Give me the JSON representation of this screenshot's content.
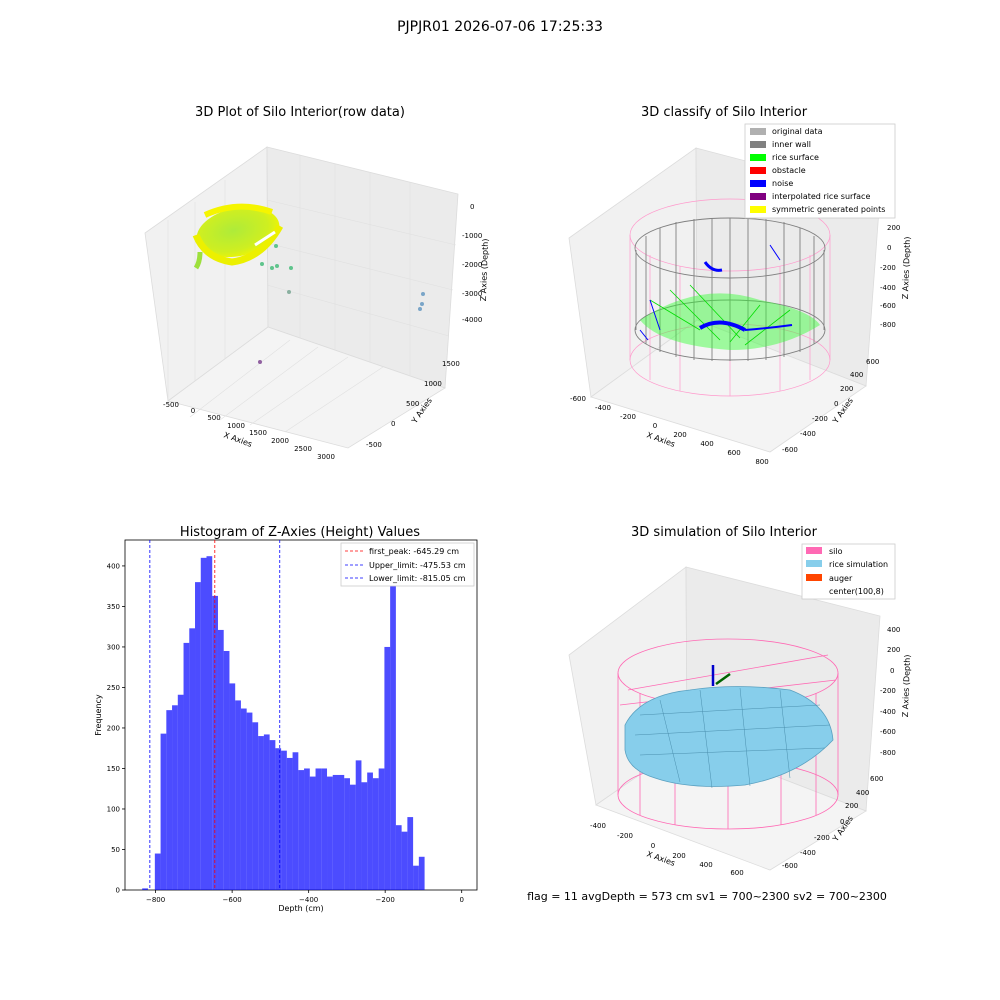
{
  "figure": {
    "suptitle": "PJPJR01 2026-07-06 17:25:33",
    "footer_text": "flag = 11   avgDepth = 573 cm  sv1 = 700~2300  sv2 = 700~2300"
  },
  "chart_data": [
    {
      "type": "scatter",
      "title": "3D Plot of Silo Interior(row data)",
      "xlabel": "X Axies",
      "ylabel": "Y Axies",
      "zlabel": "Z Axies (Depth)",
      "x_ticks": [
        "-500",
        "0",
        "500",
        "1000",
        "1500",
        "2000",
        "2500",
        "3000"
      ],
      "y_ticks": [
        "-500",
        "0",
        "500",
        "1000",
        "1500"
      ],
      "z_ticks": [
        "0",
        "-1000",
        "-2000",
        "-3000",
        "-4000"
      ],
      "outlier_points": [
        {
          "x": 500,
          "y": 700,
          "z": -1900
        },
        {
          "x": 600,
          "y": 700,
          "z": -2100
        },
        {
          "x": 700,
          "y": 750,
          "z": -2150
        },
        {
          "x": 400,
          "y": 900,
          "z": -2000
        },
        {
          "x": 800,
          "y": 600,
          "z": -2900
        },
        {
          "x": 2800,
          "y": 1400,
          "z": -3200
        },
        {
          "x": 2800,
          "y": 1300,
          "z": -3700
        },
        {
          "x": 600,
          "y": -400,
          "z": -4500
        }
      ]
    },
    {
      "type": "scatter",
      "title": "3D classify of Silo Interior",
      "xlabel": "X Axies",
      "ylabel": "Y Axies",
      "zlabel": "Z Axies (Depth)",
      "x_ticks": [
        "-600",
        "-400",
        "-200",
        "0",
        "200",
        "400",
        "600",
        "800"
      ],
      "y_ticks": [
        "-600",
        "-400",
        "-200",
        "0",
        "200",
        "400",
        "600"
      ],
      "z_ticks": [
        "200",
        "0",
        "-200",
        "-400",
        "-600",
        "-800"
      ],
      "legend_position": "top-right",
      "legend": [
        {
          "label": "original data",
          "color": "#b0b0b0"
        },
        {
          "label": "inner wall",
          "color": "#808080"
        },
        {
          "label": "rice surface",
          "color": "#00ff00"
        },
        {
          "label": "obstacle",
          "color": "#ff0000"
        },
        {
          "label": "noise",
          "color": "#0000ff"
        },
        {
          "label": "interpolated rice surface",
          "color": "#800080"
        },
        {
          "label": "symmetric generated points",
          "color": "#ffff00"
        }
      ]
    },
    {
      "type": "bar",
      "title": "Histogram of Z-Axies (Height) Values",
      "xlabel": "Depth (cm)",
      "ylabel": "Frequency",
      "xlim": [
        -880,
        40
      ],
      "ylim": [
        0,
        432
      ],
      "x_ticks": [
        -800,
        -600,
        -400,
        -200,
        0
      ],
      "y_ticks": [
        0,
        50,
        100,
        150,
        200,
        250,
        300,
        350,
        400
      ],
      "bin_width": 15.0,
      "bin_edges_start": -802,
      "values": [
        45,
        193,
        222,
        228,
        241,
        305,
        323,
        380,
        410,
        412,
        363,
        321,
        295,
        255,
        234,
        224,
        219,
        207,
        190,
        192,
        185,
        175,
        172,
        163,
        170,
        148,
        150,
        140,
        150,
        150,
        140,
        142,
        142,
        138,
        130,
        160,
        133,
        145,
        138,
        150,
        300,
        380,
        80,
        72,
        90,
        30,
        41
      ],
      "stray_bin": {
        "x0": -835,
        "x1": -820,
        "value": 2
      },
      "color": "#0000ff",
      "vlines": [
        {
          "label": "first_peak: -645.29 cm",
          "x": -645.29,
          "color": "#ff0000"
        },
        {
          "label": "Upper_limit: -475.53 cm",
          "x": -475.53,
          "color": "#0000ff"
        },
        {
          "label": "Lower_limit: -815.05 cm",
          "x": -815.05,
          "color": "#0000ff"
        }
      ],
      "legend_position": "top-right"
    },
    {
      "type": "surface",
      "title": "3D simulation of Silo Interior",
      "xlabel": "X Axies",
      "ylabel": "Y Axies",
      "zlabel": "Z Axies (Depth)",
      "x_ticks": [
        "-400",
        "-200",
        "0",
        "200",
        "400",
        "600"
      ],
      "y_ticks": [
        "-600",
        "-400",
        "-200",
        "0",
        "200",
        "400",
        "600"
      ],
      "z_ticks": [
        "400",
        "200",
        "0",
        "-200",
        "-400",
        "-600",
        "-800"
      ],
      "legend_position": "top-right",
      "legend": [
        {
          "label": "silo",
          "color": "#ff69b4"
        },
        {
          "label": "rice simulation",
          "color": "#87ceeb"
        },
        {
          "label": "auger",
          "color": "#ff4500"
        },
        {
          "label": "center(100,8)",
          "color": "none"
        }
      ]
    }
  ]
}
